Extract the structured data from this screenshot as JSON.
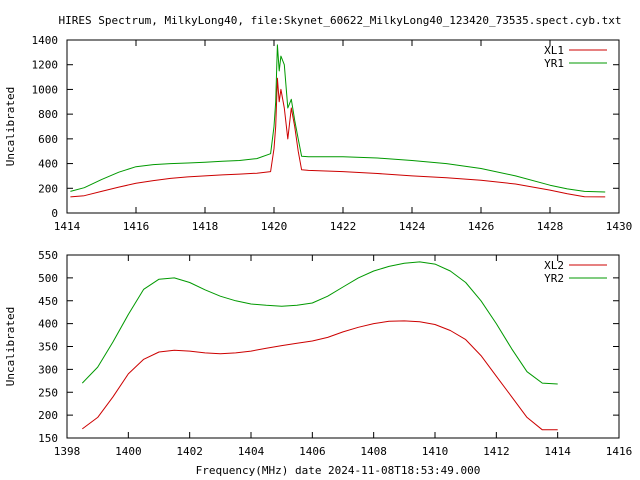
{
  "title": "HIRES Spectrum, MilkyLong40, file:Skynet_60622_MilkyLong40_123420_73535.spect.cyb.txt",
  "xlabel": "Frequency(MHz) date 2024-11-08T18:53:49.000",
  "chart_data": [
    {
      "type": "line",
      "ylabel": "Uncalibrated",
      "xlim": [
        1414,
        1430
      ],
      "ylim": [
        0,
        1400
      ],
      "x_ticks": [
        1414,
        1416,
        1418,
        1420,
        1422,
        1424,
        1426,
        1428,
        1430
      ],
      "y_ticks": [
        0,
        200,
        400,
        600,
        800,
        1000,
        1200,
        1400
      ],
      "legend_position": "top-right",
      "series": [
        {
          "name": "XL1",
          "color": "#cc0000",
          "points": [
            [
              1414.1,
              130
            ],
            [
              1414.5,
              140
            ],
            [
              1415,
              175
            ],
            [
              1415.5,
              210
            ],
            [
              1416,
              240
            ],
            [
              1416.5,
              262
            ],
            [
              1417,
              280
            ],
            [
              1417.5,
              292
            ],
            [
              1418,
              300
            ],
            [
              1418.5,
              308
            ],
            [
              1419,
              315
            ],
            [
              1419.5,
              322
            ],
            [
              1419.9,
              335
            ],
            [
              1420.0,
              520
            ],
            [
              1420.05,
              700
            ],
            [
              1420.1,
              1090
            ],
            [
              1420.15,
              900
            ],
            [
              1420.2,
              1000
            ],
            [
              1420.3,
              850
            ],
            [
              1420.4,
              600
            ],
            [
              1420.5,
              850
            ],
            [
              1420.6,
              700
            ],
            [
              1420.7,
              500
            ],
            [
              1420.8,
              350
            ],
            [
              1421,
              345
            ],
            [
              1422,
              335
            ],
            [
              1423,
              320
            ],
            [
              1424,
              300
            ],
            [
              1425,
              285
            ],
            [
              1426,
              265
            ],
            [
              1427,
              235
            ],
            [
              1428,
              185
            ],
            [
              1428.5,
              155
            ],
            [
              1429,
              132
            ],
            [
              1429.6,
              130
            ]
          ]
        },
        {
          "name": "YR1",
          "color": "#009900",
          "points": [
            [
              1414.1,
              175
            ],
            [
              1414.5,
              205
            ],
            [
              1415,
              270
            ],
            [
              1415.5,
              330
            ],
            [
              1416,
              375
            ],
            [
              1416.5,
              392
            ],
            [
              1417,
              400
            ],
            [
              1417.5,
              405
            ],
            [
              1418,
              410
            ],
            [
              1418.5,
              418
            ],
            [
              1419,
              425
            ],
            [
              1419.5,
              440
            ],
            [
              1419.9,
              480
            ],
            [
              1420.0,
              700
            ],
            [
              1420.05,
              900
            ],
            [
              1420.1,
              1360
            ],
            [
              1420.15,
              1150
            ],
            [
              1420.2,
              1270
            ],
            [
              1420.3,
              1200
            ],
            [
              1420.4,
              850
            ],
            [
              1420.5,
              920
            ],
            [
              1420.6,
              750
            ],
            [
              1420.7,
              600
            ],
            [
              1420.8,
              460
            ],
            [
              1421,
              455
            ],
            [
              1422,
              455
            ],
            [
              1423,
              445
            ],
            [
              1424,
              425
            ],
            [
              1425,
              400
            ],
            [
              1426,
              360
            ],
            [
              1427,
              300
            ],
            [
              1428,
              225
            ],
            [
              1428.5,
              195
            ],
            [
              1429,
              175
            ],
            [
              1429.6,
              170
            ]
          ]
        }
      ]
    },
    {
      "type": "line",
      "ylabel": "Uncalibrated",
      "xlim": [
        1398,
        1416
      ],
      "ylim": [
        150,
        550
      ],
      "x_ticks": [
        1398,
        1400,
        1402,
        1404,
        1406,
        1408,
        1410,
        1412,
        1414,
        1416
      ],
      "y_ticks": [
        150,
        200,
        250,
        300,
        350,
        400,
        450,
        500,
        550
      ],
      "legend_position": "top-right",
      "series": [
        {
          "name": "XL2",
          "color": "#cc0000",
          "points": [
            [
              1398.5,
              170
            ],
            [
              1399,
              195
            ],
            [
              1399.5,
              240
            ],
            [
              1400,
              290
            ],
            [
              1400.5,
              322
            ],
            [
              1401,
              338
            ],
            [
              1401.5,
              342
            ],
            [
              1402,
              340
            ],
            [
              1402.5,
              336
            ],
            [
              1403,
              334
            ],
            [
              1403.5,
              336
            ],
            [
              1404,
              340
            ],
            [
              1404.5,
              346
            ],
            [
              1405,
              352
            ],
            [
              1405.5,
              357
            ],
            [
              1406,
              362
            ],
            [
              1406.5,
              370
            ],
            [
              1407,
              382
            ],
            [
              1407.5,
              392
            ],
            [
              1408,
              400
            ],
            [
              1408.5,
              405
            ],
            [
              1409,
              406
            ],
            [
              1409.5,
              404
            ],
            [
              1410,
              398
            ],
            [
              1410.5,
              385
            ],
            [
              1411,
              365
            ],
            [
              1411.5,
              330
            ],
            [
              1412,
              285
            ],
            [
              1412.5,
              240
            ],
            [
              1413,
              195
            ],
            [
              1413.5,
              168
            ],
            [
              1414,
              168
            ]
          ]
        },
        {
          "name": "YR2",
          "color": "#009900",
          "points": [
            [
              1398.5,
              270
            ],
            [
              1399,
              305
            ],
            [
              1399.5,
              360
            ],
            [
              1400,
              420
            ],
            [
              1400.5,
              475
            ],
            [
              1401,
              497
            ],
            [
              1401.5,
              500
            ],
            [
              1402,
              490
            ],
            [
              1402.5,
              474
            ],
            [
              1403,
              460
            ],
            [
              1403.5,
              450
            ],
            [
              1404,
              443
            ],
            [
              1404.5,
              440
            ],
            [
              1405,
              438
            ],
            [
              1405.5,
              440
            ],
            [
              1406,
              445
            ],
            [
              1406.5,
              460
            ],
            [
              1407,
              480
            ],
            [
              1407.5,
              500
            ],
            [
              1408,
              515
            ],
            [
              1408.5,
              525
            ],
            [
              1409,
              532
            ],
            [
              1409.5,
              535
            ],
            [
              1410,
              530
            ],
            [
              1410.5,
              515
            ],
            [
              1411,
              490
            ],
            [
              1411.5,
              450
            ],
            [
              1412,
              400
            ],
            [
              1412.5,
              345
            ],
            [
              1413,
              295
            ],
            [
              1413.5,
              270
            ],
            [
              1414,
              268
            ]
          ]
        }
      ]
    }
  ]
}
